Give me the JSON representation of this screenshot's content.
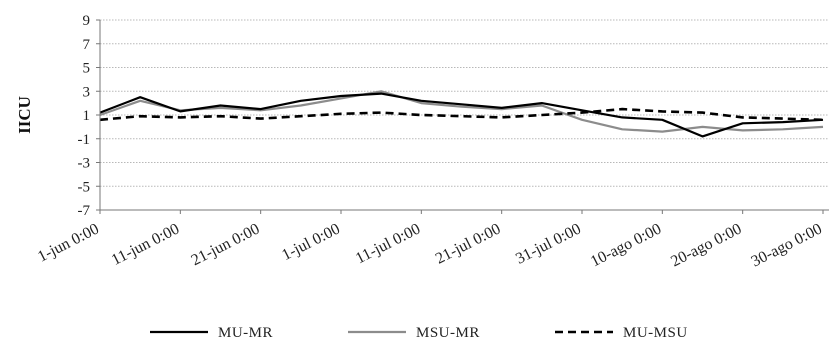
{
  "chart_data": {
    "type": "line",
    "ylabel": "IICU",
    "ylim": [
      -7,
      9
    ],
    "yticks": [
      "9",
      "7",
      "5",
      "3",
      "1",
      "-1",
      "-3",
      "-5",
      "-7"
    ],
    "xticks": [
      "1-jun 0:00",
      "11-jun 0:00",
      "21-jun 0:00",
      "1-jul 0:00",
      "11-jul 0:00",
      "21-jul 0:00",
      "31-jul 0:00",
      "10-ago 0:00",
      "20-ago 0:00",
      "30-ago 0:00"
    ],
    "grid": true,
    "legend_position": "bottom",
    "series": [
      {
        "name": "MU-MR",
        "style": "solid",
        "color": "#000000",
        "x": [
          "1-jun 0:00",
          "6-jun 0:00",
          "11-jun 0:00",
          "16-jun 0:00",
          "21-jun 0:00",
          "26-jun 0:00",
          "1-jul 0:00",
          "6-jul 0:00",
          "11-jul 0:00",
          "16-jul 0:00",
          "21-jul 0:00",
          "26-jul 0:00",
          "31-jul 0:00",
          "5-ago 0:00",
          "10-ago 0:00",
          "15-ago 0:00",
          "20-ago 0:00",
          "25-ago 0:00",
          "30-ago 0:00"
        ],
        "values": [
          1.2,
          2.5,
          1.3,
          1.8,
          1.5,
          2.2,
          2.6,
          2.8,
          2.2,
          1.9,
          1.6,
          2.0,
          1.4,
          0.8,
          0.6,
          -0.8,
          0.3,
          0.4,
          0.6
        ]
      },
      {
        "name": "MSU-MR",
        "style": "solid",
        "color": "#8c8c8c",
        "x": [
          "1-jun 0:00",
          "6-jun 0:00",
          "11-jun 0:00",
          "16-jun 0:00",
          "21-jun 0:00",
          "26-jun 0:00",
          "1-jul 0:00",
          "6-jul 0:00",
          "11-jul 0:00",
          "16-jul 0:00",
          "21-jul 0:00",
          "26-jul 0:00",
          "31-jul 0:00",
          "5-ago 0:00",
          "10-ago 0:00",
          "15-ago 0:00",
          "20-ago 0:00",
          "25-ago 0:00",
          "30-ago 0:00"
        ],
        "values": [
          1.0,
          2.2,
          1.4,
          1.6,
          1.4,
          1.8,
          2.4,
          3.0,
          2.0,
          1.7,
          1.5,
          1.8,
          0.6,
          -0.2,
          -0.4,
          0.0,
          -0.3,
          -0.2,
          0.0
        ]
      },
      {
        "name": "MU-MSU",
        "style": "dashed",
        "color": "#000000",
        "x": [
          "1-jun 0:00",
          "6-jun 0:00",
          "11-jun 0:00",
          "16-jun 0:00",
          "21-jun 0:00",
          "26-jun 0:00",
          "1-jul 0:00",
          "6-jul 0:00",
          "11-jul 0:00",
          "16-jul 0:00",
          "21-jul 0:00",
          "26-jul 0:00",
          "31-jul 0:00",
          "5-ago 0:00",
          "10-ago 0:00",
          "15-ago 0:00",
          "20-ago 0:00",
          "25-ago 0:00",
          "30-ago 0:00"
        ],
        "values": [
          0.6,
          0.9,
          0.8,
          0.9,
          0.7,
          0.9,
          1.1,
          1.2,
          1.0,
          0.9,
          0.8,
          1.0,
          1.2,
          1.5,
          1.3,
          1.2,
          0.8,
          0.7,
          0.6
        ]
      }
    ]
  }
}
